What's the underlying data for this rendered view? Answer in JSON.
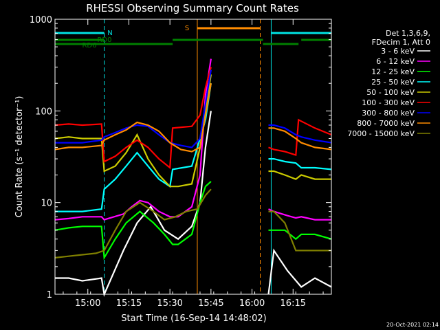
{
  "chart_data": {
    "type": "line",
    "title": "RHESSI Observing Summary Count Rates",
    "xlabel": "Start Time (16-Sep-14 14:48:02)",
    "ylabel": "Count Rate (s⁻¹ detector⁻¹)",
    "yscale": "log",
    "ylim": [
      1,
      1000
    ],
    "xlim_minutes": [
      0,
      101
    ],
    "xtick_labels": [
      "15:00",
      "15:15",
      "15:30",
      "15:45",
      "16:00",
      "16:15"
    ],
    "xtick_minutes": [
      12,
      27,
      42,
      57,
      72,
      87
    ],
    "ytick_labels": [
      "1",
      "10",
      "100",
      "1000"
    ],
    "ytick_values": [
      1,
      10,
      100,
      1000
    ],
    "legend_header": [
      "Det 1,3,6,9,",
      "FDecim 1, Att 0"
    ],
    "legend_position": "right",
    "footer_date": "20-Oct-2021 02:14",
    "annotations": [
      {
        "label": "N",
        "color": "#00e5e5",
        "flag": "N"
      },
      {
        "label": "RD0",
        "color": "#008000",
        "flag": "RD0"
      },
      {
        "label": "RD6",
        "color": "#008000",
        "flag": "RD6"
      },
      {
        "label": "S",
        "color": "#ff8c00",
        "flag": "S"
      }
    ],
    "flag_bars": {
      "N": {
        "color": "#00e5e5",
        "segments": [
          [
            0,
            18
          ],
          [
            79,
            101
          ]
        ]
      },
      "S": {
        "color": "#ff8c00",
        "segments": [
          [
            52,
            75
          ]
        ]
      },
      "RD0": {
        "color": "#008000",
        "segments": [
          [
            0,
            18
          ],
          [
            43,
            76
          ],
          [
            90,
            101
          ]
        ]
      },
      "RD6": {
        "color": "#008000",
        "segments": [
          [
            0,
            43
          ],
          [
            76,
            89
          ]
        ]
      }
    },
    "vlines": [
      {
        "t": 18,
        "color": "#00e5e5",
        "dashed": true
      },
      {
        "t": 52,
        "color": "#ff8c00",
        "dashed": false
      },
      {
        "t": 75,
        "color": "#ff8c00",
        "dashed": true
      },
      {
        "t": 79,
        "color": "#00e5e5",
        "dashed": false
      },
      {
        "t": 101,
        "color": "#00e5e5",
        "dashed": true
      }
    ],
    "data_gap_minutes": [
      57,
      78
    ],
    "series": [
      {
        "name": "3 - 6 keV",
        "color": "#ffffff",
        "points": [
          [
            0,
            1.5
          ],
          [
            5,
            1.5
          ],
          [
            10,
            1.4
          ],
          [
            17,
            1.5
          ],
          [
            18,
            1.0
          ],
          [
            25,
            3.0
          ],
          [
            30,
            6.0
          ],
          [
            35,
            9.0
          ],
          [
            40,
            5.0
          ],
          [
            45,
            4.0
          ],
          [
            50,
            5.5
          ],
          [
            53,
            10
          ],
          [
            55,
            40
          ],
          [
            57,
            100
          ],
          [
            78,
            1.0
          ],
          [
            80,
            3.0
          ],
          [
            85,
            1.8
          ],
          [
            90,
            1.2
          ],
          [
            95,
            1.5
          ],
          [
            101,
            1.2
          ]
        ]
      },
      {
        "name": "6 - 12 keV",
        "color": "#ff00ff",
        "points": [
          [
            0,
            6.5
          ],
          [
            5,
            6.7
          ],
          [
            10,
            7.0
          ],
          [
            17,
            7.0
          ],
          [
            18,
            6.5
          ],
          [
            25,
            7.5
          ],
          [
            28,
            9
          ],
          [
            31,
            10.5
          ],
          [
            34,
            10
          ],
          [
            38,
            8.0
          ],
          [
            42,
            7.0
          ],
          [
            45,
            7.0
          ],
          [
            50,
            9.0
          ],
          [
            53,
            20
          ],
          [
            55,
            150
          ],
          [
            57,
            370
          ],
          [
            78,
            8.5
          ],
          [
            80,
            8.0
          ],
          [
            85,
            7.2
          ],
          [
            88,
            6.8
          ],
          [
            90,
            7.0
          ],
          [
            95,
            6.5
          ],
          [
            101,
            6.5
          ]
        ]
      },
      {
        "name": "12 - 25 keV",
        "color": "#00ff00",
        "points": [
          [
            0,
            5.0
          ],
          [
            5,
            5.3
          ],
          [
            10,
            5.5
          ],
          [
            17,
            5.5
          ],
          [
            18,
            2.5
          ],
          [
            22,
            4.0
          ],
          [
            26,
            6.0
          ],
          [
            31,
            8.0
          ],
          [
            36,
            6.0
          ],
          [
            40,
            4.5
          ],
          [
            43,
            3.5
          ],
          [
            45,
            3.5
          ],
          [
            50,
            4.5
          ],
          [
            53,
            10
          ],
          [
            55,
            15
          ],
          [
            57,
            17
          ],
          [
            78,
            5.0
          ],
          [
            80,
            5.0
          ],
          [
            84,
            5.0
          ],
          [
            88,
            4.0
          ],
          [
            90,
            4.5
          ],
          [
            95,
            4.5
          ],
          [
            101,
            4.0
          ]
        ]
      },
      {
        "name": "25 - 50 keV",
        "color": "#00ffff",
        "points": [
          [
            0,
            8.0
          ],
          [
            5,
            8.0
          ],
          [
            10,
            8.0
          ],
          [
            17,
            8.5
          ],
          [
            18,
            14
          ],
          [
            22,
            18
          ],
          [
            26,
            25
          ],
          [
            30,
            35
          ],
          [
            34,
            25
          ],
          [
            38,
            18
          ],
          [
            42,
            15
          ],
          [
            43,
            23
          ],
          [
            50,
            25
          ],
          [
            53,
            50
          ],
          [
            55,
            80
          ],
          [
            57,
            200
          ],
          [
            78,
            30
          ],
          [
            80,
            30
          ],
          [
            84,
            28
          ],
          [
            88,
            27
          ],
          [
            90,
            24
          ],
          [
            95,
            24
          ],
          [
            101,
            23
          ]
        ]
      },
      {
        "name": "50 - 100 keV",
        "color": "#cccc00",
        "points": [
          [
            0,
            50
          ],
          [
            5,
            52
          ],
          [
            10,
            50
          ],
          [
            17,
            50
          ],
          [
            18,
            22
          ],
          [
            22,
            25
          ],
          [
            26,
            35
          ],
          [
            30,
            55
          ],
          [
            34,
            30
          ],
          [
            38,
            20
          ],
          [
            42,
            15
          ],
          [
            45,
            15
          ],
          [
            50,
            16
          ],
          [
            53,
            40
          ],
          [
            55,
            100
          ],
          [
            57,
            250
          ],
          [
            78,
            22
          ],
          [
            80,
            22
          ],
          [
            84,
            20
          ],
          [
            88,
            18
          ],
          [
            90,
            20
          ],
          [
            95,
            18
          ],
          [
            101,
            18
          ]
        ]
      },
      {
        "name": "100 - 300 keV",
        "color": "#ff0000",
        "points": [
          [
            0,
            70
          ],
          [
            5,
            72
          ],
          [
            10,
            70
          ],
          [
            17,
            72
          ],
          [
            18,
            28
          ],
          [
            22,
            32
          ],
          [
            26,
            40
          ],
          [
            30,
            48
          ],
          [
            34,
            40
          ],
          [
            38,
            30
          ],
          [
            42,
            24
          ],
          [
            43,
            65
          ],
          [
            50,
            68
          ],
          [
            53,
            90
          ],
          [
            55,
            180
          ],
          [
            57,
            300
          ],
          [
            78,
            40
          ],
          [
            80,
            38
          ],
          [
            84,
            36
          ],
          [
            88,
            33
          ],
          [
            89,
            80
          ],
          [
            95,
            65
          ],
          [
            101,
            55
          ]
        ]
      },
      {
        "name": "300 - 800 keV",
        "color": "#0000ff",
        "points": [
          [
            0,
            45
          ],
          [
            5,
            45
          ],
          [
            10,
            45
          ],
          [
            17,
            48
          ],
          [
            18,
            52
          ],
          [
            22,
            58
          ],
          [
            26,
            65
          ],
          [
            30,
            70
          ],
          [
            34,
            68
          ],
          [
            38,
            55
          ],
          [
            42,
            45
          ],
          [
            46,
            42
          ],
          [
            50,
            40
          ],
          [
            53,
            50
          ],
          [
            55,
            120
          ],
          [
            57,
            280
          ],
          [
            78,
            70
          ],
          [
            80,
            70
          ],
          [
            84,
            65
          ],
          [
            88,
            55
          ],
          [
            90,
            52
          ],
          [
            95,
            48
          ],
          [
            101,
            45
          ]
        ]
      },
      {
        "name": "800 - 7000 keV",
        "color": "#ff8c00",
        "points": [
          [
            0,
            38
          ],
          [
            5,
            40
          ],
          [
            10,
            40
          ],
          [
            17,
            42
          ],
          [
            18,
            48
          ],
          [
            22,
            55
          ],
          [
            26,
            62
          ],
          [
            30,
            75
          ],
          [
            34,
            70
          ],
          [
            38,
            60
          ],
          [
            42,
            45
          ],
          [
            46,
            38
          ],
          [
            50,
            36
          ],
          [
            53,
            40
          ],
          [
            55,
            90
          ],
          [
            57,
            200
          ],
          [
            78,
            65
          ],
          [
            80,
            65
          ],
          [
            84,
            60
          ],
          [
            88,
            50
          ],
          [
            90,
            45
          ],
          [
            95,
            40
          ],
          [
            101,
            38
          ]
        ]
      },
      {
        "name": "7000 - 15000 keV",
        "color": "#808000",
        "points": [
          [
            0,
            2.5
          ],
          [
            5,
            2.6
          ],
          [
            10,
            2.7
          ],
          [
            15,
            2.8
          ],
          [
            18,
            3.0
          ],
          [
            22,
            5.0
          ],
          [
            26,
            8.0
          ],
          [
            31,
            10
          ],
          [
            36,
            8.0
          ],
          [
            40,
            6.5
          ],
          [
            44,
            7.0
          ],
          [
            48,
            8.0
          ],
          [
            52,
            8.5
          ],
          [
            55,
            12
          ],
          [
            57,
            14
          ],
          [
            78,
            8
          ],
          [
            80,
            8
          ],
          [
            84,
            6
          ],
          [
            88,
            3
          ],
          [
            90,
            3
          ],
          [
            95,
            3
          ],
          [
            101,
            3
          ]
        ]
      }
    ]
  }
}
